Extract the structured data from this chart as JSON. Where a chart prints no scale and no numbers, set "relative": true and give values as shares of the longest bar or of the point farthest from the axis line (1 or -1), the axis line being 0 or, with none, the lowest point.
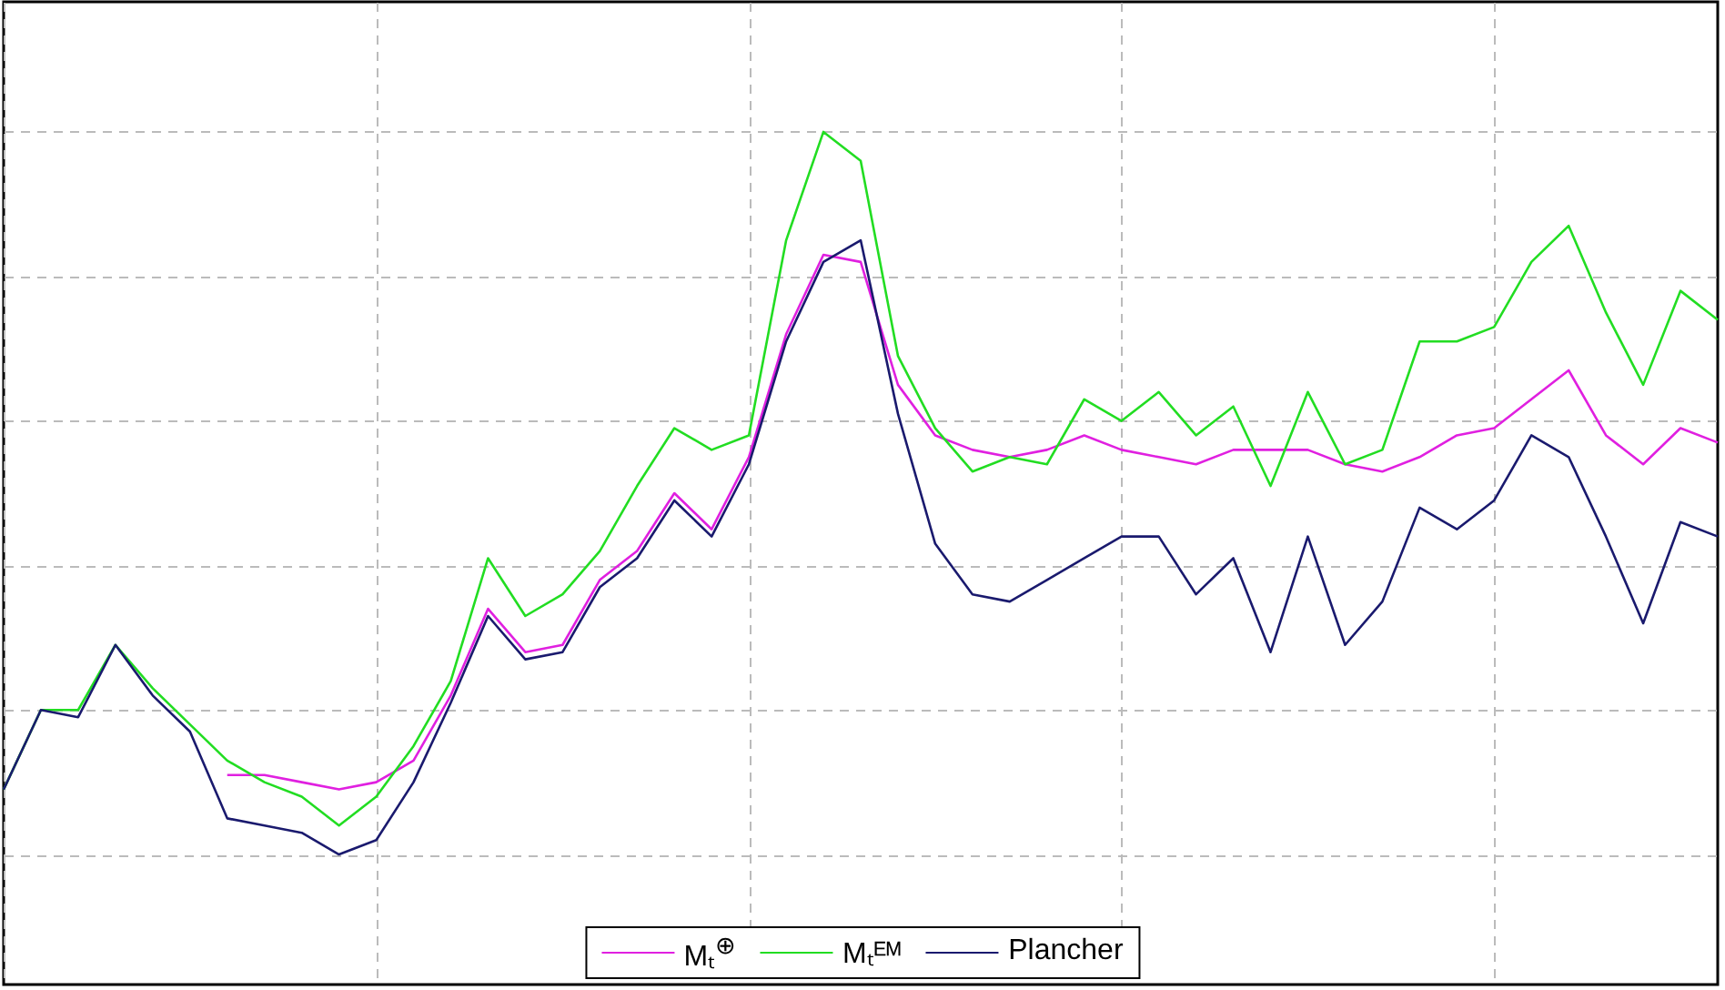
{
  "chart_data": {
    "type": "line",
    "relative": true,
    "grid": true,
    "legend": "bottom",
    "line_style": "solid",
    "categories": [
      null,
      null,
      null,
      null,
      null,
      null,
      null,
      null,
      null,
      null,
      null,
      null,
      null,
      null,
      null,
      null,
      null,
      null,
      null,
      null,
      null,
      null,
      null,
      null,
      null,
      null,
      null,
      null,
      null,
      null,
      null,
      null,
      null,
      null,
      null,
      null,
      null,
      null,
      null,
      null,
      null,
      null,
      null,
      null,
      null,
      null,
      null
    ],
    "series": [
      {
        "name": "Mₜ$^{⊕}$",
        "color": "#e020e0",
        "values": [
          null,
          null,
          null,
          null,
          null,
          null,
          0.11,
          0.11,
          0.1,
          0.09,
          0.1,
          0.13,
          0.22,
          0.34,
          0.28,
          0.29,
          0.38,
          0.42,
          0.5,
          0.45,
          0.55,
          0.72,
          0.83,
          0.82,
          0.65,
          0.58,
          0.56,
          0.55,
          0.56,
          0.58,
          0.56,
          0.55,
          0.54,
          0.56,
          0.56,
          0.56,
          0.54,
          0.53,
          0.55,
          0.58,
          0.59,
          0.63,
          0.67,
          0.58,
          0.54,
          0.59,
          0.57
        ]
      },
      {
        "name": "Mₜᴱᴹ",
        "color": "#22dd22",
        "values": [
          0.09,
          0.2,
          0.2,
          0.29,
          0.23,
          0.18,
          0.13,
          0.1,
          0.08,
          0.04,
          0.08,
          0.15,
          0.24,
          0.41,
          0.33,
          0.36,
          0.42,
          0.51,
          0.59,
          0.56,
          0.58,
          0.85,
          1,
          0.96,
          0.69,
          0.59,
          0.53,
          0.55,
          0.54,
          0.63,
          0.6,
          0.64,
          0.58,
          0.62,
          0.51,
          0.64,
          0.54,
          0.56,
          0.71,
          0.71,
          0.73,
          0.82,
          0.87,
          0.75,
          0.65,
          0.78,
          0.74
        ]
      },
      {
        "name": "Plancher",
        "color": "#1a1a6e",
        "values": [
          0.09,
          0.2,
          0.19,
          0.29,
          0.22,
          0.17,
          0.05,
          0.04,
          0.03,
          0,
          0.02,
          0.1,
          0.21,
          0.33,
          0.27,
          0.28,
          0.37,
          0.41,
          0.49,
          0.44,
          0.54,
          0.71,
          0.82,
          0.85,
          0.61,
          0.43,
          0.36,
          0.35,
          0.38,
          0.41,
          0.44,
          0.44,
          0.36,
          0.41,
          0.28,
          0.44,
          0.29,
          0.35,
          0.48,
          0.45,
          0.49,
          0.58,
          0.55,
          0.44,
          0.32,
          0.46,
          0.44
        ]
      }
    ]
  }
}
